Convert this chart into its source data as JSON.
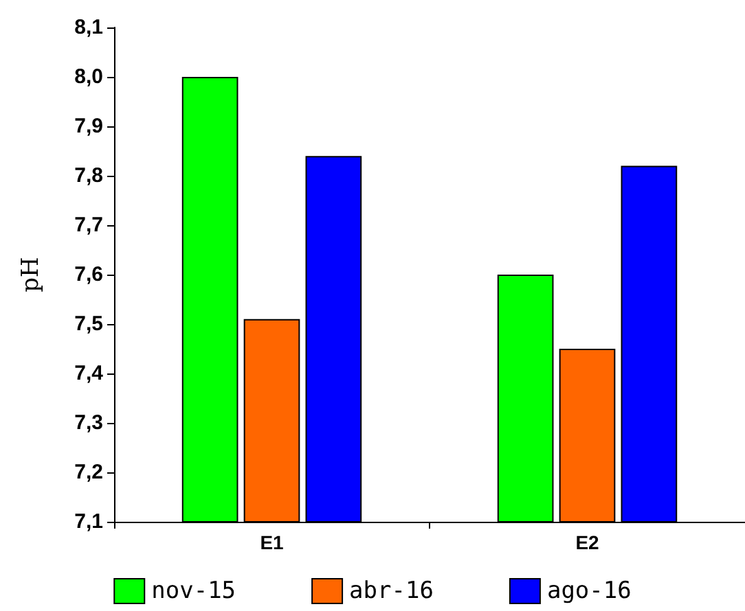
{
  "chart_data": {
    "type": "bar",
    "ylabel": "pH",
    "categories": [
      "E1",
      "E2"
    ],
    "series": [
      {
        "name": "nov-15",
        "color": "#00ff00",
        "values": [
          8.0,
          7.6
        ]
      },
      {
        "name": "abr-16",
        "color": "#ff6600",
        "values": [
          7.51,
          7.45
        ]
      },
      {
        "name": "ago-16",
        "color": "#0000ff",
        "values": [
          7.84,
          7.82
        ]
      }
    ],
    "ylim": [
      7.1,
      8.1
    ],
    "yticks": [
      {
        "value": 7.1,
        "label": "7,1"
      },
      {
        "value": 7.2,
        "label": "7,2"
      },
      {
        "value": 7.3,
        "label": "7,3"
      },
      {
        "value": 7.4,
        "label": "7,4"
      },
      {
        "value": 7.5,
        "label": "7,5"
      },
      {
        "value": 7.6,
        "label": "7,6"
      },
      {
        "value": 7.7,
        "label": "7,7"
      },
      {
        "value": 7.8,
        "label": "7,8"
      },
      {
        "value": 7.9,
        "label": "7,9"
      },
      {
        "value": 8.0,
        "label": "8,0"
      },
      {
        "value": 8.1,
        "label": "8,1"
      }
    ],
    "grid": false,
    "legend": "bottom"
  }
}
